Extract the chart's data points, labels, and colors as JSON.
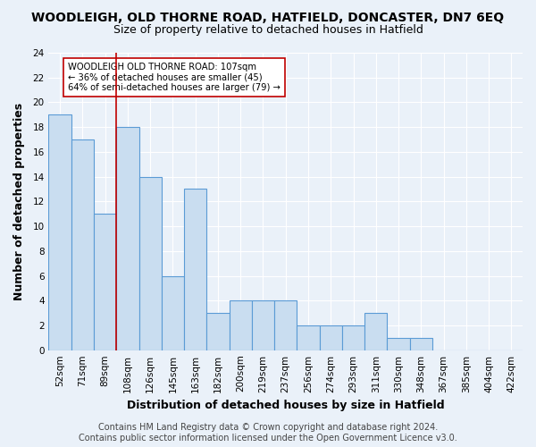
{
  "title": "WOODLEIGH, OLD THORNE ROAD, HATFIELD, DONCASTER, DN7 6EQ",
  "subtitle": "Size of property relative to detached houses in Hatfield",
  "xlabel": "Distribution of detached houses by size in Hatfield",
  "ylabel": "Number of detached properties",
  "bin_labels": [
    "52sqm",
    "71sqm",
    "89sqm",
    "108sqm",
    "126sqm",
    "145sqm",
    "163sqm",
    "182sqm",
    "200sqm",
    "219sqm",
    "237sqm",
    "256sqm",
    "274sqm",
    "293sqm",
    "311sqm",
    "330sqm",
    "348sqm",
    "367sqm",
    "385sqm",
    "404sqm",
    "422sqm"
  ],
  "bar_values": [
    19,
    17,
    11,
    18,
    14,
    6,
    13,
    3,
    4,
    4,
    4,
    2,
    2,
    2,
    3,
    1,
    1,
    0,
    0,
    0,
    0
  ],
  "bar_color": "#c9ddf0",
  "bar_edge_color": "#5b9bd5",
  "vline_bin": 3,
  "vline_color": "#c00000",
  "annotation_text": "WOODLEIGH OLD THORNE ROAD: 107sqm\n← 36% of detached houses are smaller (45)\n64% of semi-detached houses are larger (79) →",
  "annotation_box_color": "white",
  "annotation_box_edge": "#c00000",
  "ylim": [
    0,
    24
  ],
  "yticks": [
    0,
    2,
    4,
    6,
    8,
    10,
    12,
    14,
    16,
    18,
    20,
    22,
    24
  ],
  "footer": "Contains HM Land Registry data © Crown copyright and database right 2024.\nContains public sector information licensed under the Open Government Licence v3.0.",
  "background_color": "#eaf1f9",
  "plot_bg_color": "#eaf1f9",
  "grid_color": "white",
  "title_fontsize": 10,
  "subtitle_fontsize": 9,
  "label_fontsize": 9,
  "tick_fontsize": 7.5,
  "footer_fontsize": 7
}
